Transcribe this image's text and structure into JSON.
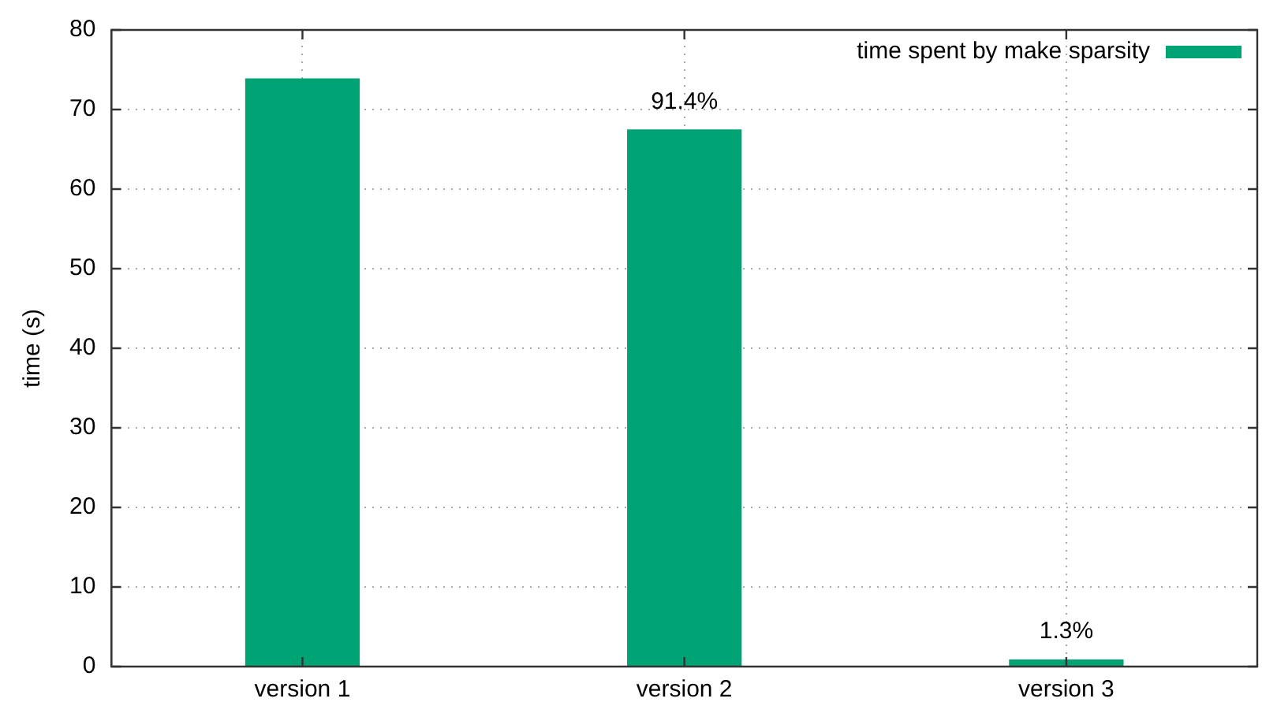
{
  "chart_data": {
    "type": "bar",
    "ylabel": "time (s)",
    "categories": [
      "version 1",
      "version 2",
      "version 3"
    ],
    "series": [
      {
        "name": "time spent by make sparsity",
        "color": "#00a374",
        "values": [
          73.9,
          67.5,
          0.9
        ]
      }
    ],
    "annotations": [
      {
        "text": "91.4%",
        "x": "version 2",
        "y": 67.5
      },
      {
        "text": "1.3%",
        "x": "version 3",
        "y": 0.9
      }
    ],
    "ylim": [
      0,
      80
    ],
    "yticks": [
      0,
      10,
      20,
      30,
      40,
      50,
      60,
      70,
      80
    ],
    "grid": true,
    "legend": "top right"
  }
}
